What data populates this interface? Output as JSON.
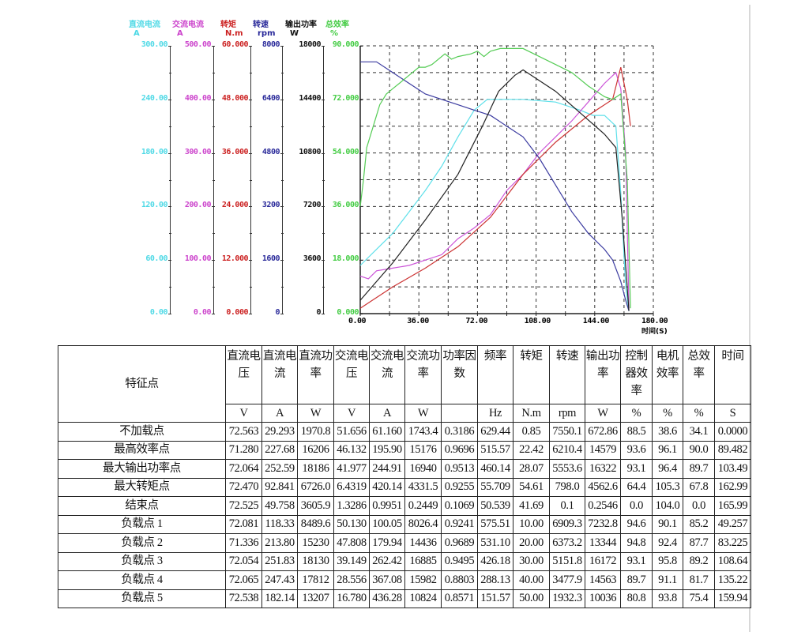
{
  "chart_data": {
    "type": "line",
    "title": "",
    "xlabel": "时间(S)",
    "xlim": [
      0,
      180
    ],
    "x_ticks": [
      "0.00",
      "36.00",
      "72.00",
      "108.00",
      "144.00",
      "180.00"
    ],
    "grid": true,
    "axes": [
      {
        "name": "直流电流",
        "unit": "A",
        "color": "#4fd9e6",
        "range": [
          0,
          300
        ],
        "ticks": [
          "300.00",
          "240.00",
          "180.00",
          "120.00",
          "60.00",
          "0.00"
        ]
      },
      {
        "name": "交流电流",
        "unit": "A",
        "color": "#cc44cc",
        "range": [
          0,
          500
        ],
        "ticks": [
          "500.00",
          "400.00",
          "300.00",
          "200.00",
          "100.00",
          "0.00"
        ]
      },
      {
        "name": "转矩",
        "unit": "N.m",
        "color": "#cc2222",
        "range": [
          0,
          60
        ],
        "ticks": [
          "60.000",
          "48.000",
          "36.000",
          "24.000",
          "12.000",
          "0.000"
        ]
      },
      {
        "name": "转速",
        "unit": "rpm",
        "color": "#2a2a9a",
        "range": [
          0,
          8000
        ],
        "ticks": [
          "8000",
          "6400",
          "4800",
          "3200",
          "1600",
          "0"
        ]
      },
      {
        "name": "输出功率",
        "unit": "W",
        "color": "#111111",
        "range": [
          0,
          18000
        ],
        "ticks": [
          "18000",
          "14400",
          "10800",
          "7200",
          "3600",
          "0"
        ]
      },
      {
        "name": "总效率",
        "unit": "%",
        "color": "#44cc44",
        "range": [
          0,
          90
        ],
        "ticks": [
          "90.000",
          "72.000",
          "54.000",
          "36.000",
          "18.000",
          "0.000"
        ]
      }
    ],
    "series": [
      {
        "name": "直流电流",
        "color": "#5fe0ea",
        "x": [
          0,
          10,
          20,
          30,
          40,
          50,
          60,
          70,
          78,
          85,
          100,
          120,
          135,
          143,
          150,
          157,
          160,
          163,
          165
        ],
        "y": [
          0.18,
          0.24,
          0.3,
          0.38,
          0.46,
          0.55,
          0.66,
          0.76,
          0.8,
          0.8,
          0.8,
          0.79,
          0.76,
          0.74,
          0.74,
          0.7,
          0.45,
          0.1,
          0.01
        ]
      },
      {
        "name": "交流电流",
        "color": "#cc55d8",
        "x": [
          0,
          5,
          10,
          20,
          30,
          40,
          50,
          60,
          70,
          80,
          90,
          100,
          110,
          120,
          130,
          140,
          150,
          157,
          160,
          163,
          165
        ],
        "y": [
          0.14,
          0.13,
          0.16,
          0.17,
          0.18,
          0.2,
          0.22,
          0.28,
          0.32,
          0.37,
          0.46,
          0.52,
          0.6,
          0.66,
          0.72,
          0.79,
          0.86,
          0.9,
          0.84,
          0.6,
          0.02
        ]
      },
      {
        "name": "转矩",
        "color": "#cc3333",
        "x": [
          0,
          20,
          40,
          60,
          80,
          100,
          120,
          140,
          155,
          160,
          162,
          164,
          166
        ],
        "y": [
          0.02,
          0.1,
          0.17,
          0.25,
          0.36,
          0.52,
          0.64,
          0.74,
          0.8,
          0.92,
          0.86,
          0.8,
          0.7
        ]
      },
      {
        "name": "转速",
        "color": "#3b3ba0",
        "x": [
          0,
          10,
          20,
          30,
          40,
          50,
          60,
          70,
          80,
          90,
          100,
          110,
          120,
          130,
          140,
          150,
          155,
          160,
          163,
          165
        ],
        "y": [
          0.94,
          0.94,
          0.9,
          0.86,
          0.82,
          0.8,
          0.78,
          0.76,
          0.74,
          0.7,
          0.66,
          0.58,
          0.48,
          0.38,
          0.3,
          0.24,
          0.2,
          0.12,
          0.05,
          0.01
        ]
      },
      {
        "name": "输出功率",
        "color": "#222222",
        "x": [
          0,
          20,
          40,
          60,
          75,
          85,
          95,
          100,
          105,
          120,
          135,
          150,
          157,
          161,
          165
        ],
        "y": [
          0.05,
          0.19,
          0.35,
          0.52,
          0.7,
          0.83,
          0.89,
          0.91,
          0.89,
          0.83,
          0.75,
          0.67,
          0.62,
          0.35,
          0.01
        ]
      },
      {
        "name": "总效率",
        "color": "#55cc55",
        "x": [
          0,
          2,
          4,
          8,
          12,
          16,
          20,
          24,
          30,
          36,
          40,
          44,
          52,
          56,
          60,
          68,
          72,
          76,
          80,
          86,
          92,
          100,
          110,
          120,
          130,
          140,
          150,
          155,
          160,
          164,
          166
        ],
        "y": [
          0.4,
          0.5,
          0.62,
          0.7,
          0.78,
          0.82,
          0.84,
          0.86,
          0.89,
          0.92,
          0.92,
          0.93,
          0.97,
          0.95,
          0.96,
          0.97,
          0.98,
          0.96,
          0.98,
          0.99,
          0.99,
          0.99,
          0.96,
          0.93,
          0.9,
          0.85,
          0.81,
          0.8,
          0.82,
          0.5,
          0.02
        ]
      }
    ]
  },
  "chart": {
    "axis_heads": [
      {
        "name": "直流电流",
        "unit": "A"
      },
      {
        "name": "交流电流",
        "unit": "A"
      },
      {
        "name": "转矩",
        "unit": "N.m"
      },
      {
        "name": "转速",
        "unit": "rpm"
      },
      {
        "name": "输出功率",
        "unit": "W"
      },
      {
        "name": "总效率",
        "unit": "%"
      }
    ],
    "xlabel": "时间(S)"
  },
  "table": {
    "corner_header": "特征点",
    "columns": [
      {
        "label": "直流电压",
        "unit": "V"
      },
      {
        "label": "直流电流",
        "unit": "A"
      },
      {
        "label": "直流功率",
        "unit": "W"
      },
      {
        "label": "交流电压",
        "unit": "V"
      },
      {
        "label": "交流电流",
        "unit": "A"
      },
      {
        "label": "交流功率",
        "unit": "W"
      },
      {
        "label": "功率因数",
        "unit": ""
      },
      {
        "label": "频率",
        "unit": "Hz"
      },
      {
        "label": "转矩",
        "unit": "N.m"
      },
      {
        "label": "转速",
        "unit": "rpm"
      },
      {
        "label": "输出功率",
        "unit": "W"
      },
      {
        "label": "控制器效率",
        "unit": "%"
      },
      {
        "label": "电机效率",
        "unit": "%"
      },
      {
        "label": "总效率",
        "unit": "%"
      },
      {
        "label": "时间",
        "unit": "S"
      }
    ],
    "rows": [
      {
        "label": "不加载点",
        "values": [
          "72.563",
          "29.293",
          "1970.8",
          "51.656",
          "61.160",
          "1743.4",
          "0.3186",
          "629.44",
          "0.85",
          "7550.1",
          "672.86",
          "88.5",
          "38.6",
          "34.1",
          "0.0000"
        ]
      },
      {
        "label": "最高效率点",
        "values": [
          "71.280",
          "227.68",
          "16206",
          "46.132",
          "195.90",
          "15176",
          "0.9696",
          "515.57",
          "22.42",
          "6210.4",
          "14579",
          "93.6",
          "96.1",
          "90.0",
          "89.482"
        ]
      },
      {
        "label": "最大输出功率点",
        "values": [
          "72.064",
          "252.59",
          "18186",
          "41.977",
          "244.91",
          "16940",
          "0.9513",
          "460.14",
          "28.07",
          "5553.6",
          "16322",
          "93.1",
          "96.4",
          "89.7",
          "103.49"
        ]
      },
      {
        "label": "最大转矩点",
        "values": [
          "72.470",
          "92.841",
          "6726.0",
          "6.4319",
          "420.14",
          "4331.5",
          "0.9255",
          "55.709",
          "54.61",
          "798.0",
          "4562.6",
          "64.4",
          "105.3",
          "67.8",
          "162.99"
        ]
      },
      {
        "label": "结束点",
        "values": [
          "72.525",
          "49.758",
          "3605.9",
          "1.3286",
          "0.9951",
          "0.2449",
          "0.1069",
          "50.539",
          "41.69",
          "0.1",
          "0.2546",
          "0.0",
          "104.0",
          "0.0",
          "165.99"
        ]
      },
      {
        "label": "负载点 1",
        "values": [
          "72.081",
          "118.33",
          "8489.6",
          "50.130",
          "100.05",
          "8026.4",
          "0.9241",
          "575.51",
          "10.00",
          "6909.3",
          "7232.8",
          "94.6",
          "90.1",
          "85.2",
          "49.257"
        ]
      },
      {
        "label": "负载点 2",
        "values": [
          "71.336",
          "213.80",
          "15230",
          "47.808",
          "179.94",
          "14436",
          "0.9689",
          "531.10",
          "20.00",
          "6373.2",
          "13344",
          "94.8",
          "92.4",
          "87.7",
          "83.225"
        ]
      },
      {
        "label": "负载点 3",
        "values": [
          "72.054",
          "251.83",
          "18130",
          "39.149",
          "262.42",
          "16885",
          "0.9495",
          "426.18",
          "30.00",
          "5151.8",
          "16172",
          "93.1",
          "95.8",
          "89.2",
          "108.64"
        ]
      },
      {
        "label": "负载点 4",
        "values": [
          "72.065",
          "247.43",
          "17812",
          "28.556",
          "367.08",
          "15982",
          "0.8803",
          "288.13",
          "40.00",
          "3477.9",
          "14563",
          "89.7",
          "91.1",
          "81.7",
          "135.22"
        ]
      },
      {
        "label": "负载点 5",
        "values": [
          "72.538",
          "182.14",
          "13207",
          "16.780",
          "436.28",
          "10824",
          "0.8571",
          "151.57",
          "50.00",
          "1932.3",
          "10036",
          "80.8",
          "93.8",
          "75.4",
          "159.94"
        ]
      }
    ]
  }
}
